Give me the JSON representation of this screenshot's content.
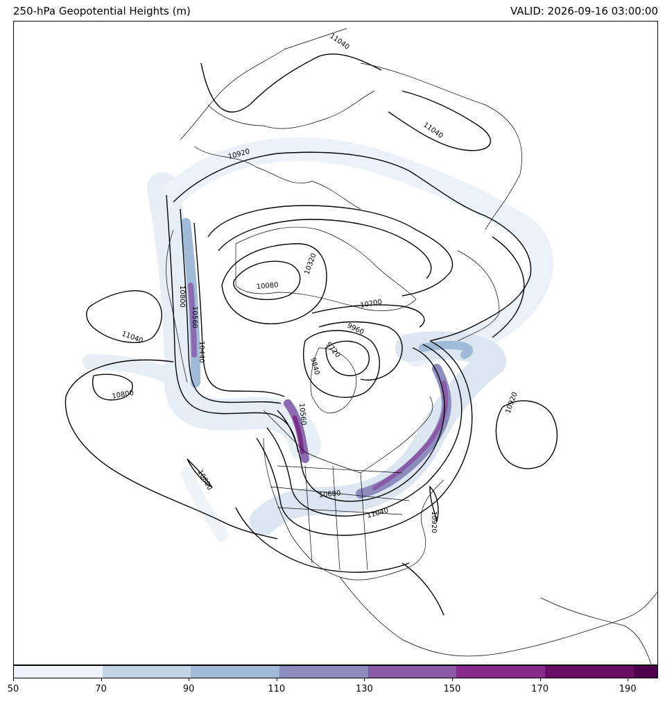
{
  "header": {
    "title": "250-hPa Geopotential Heights (m)",
    "valid": "VALID: 2026-09-16 03:00:00"
  },
  "contour_labels": [
    {
      "text": "11040",
      "rotate": 35
    },
    {
      "text": "11040",
      "rotate": 35
    },
    {
      "text": "10920",
      "rotate": -15
    },
    {
      "text": "11040",
      "rotate": 20
    },
    {
      "text": "10800",
      "rotate": -10
    },
    {
      "text": "10800",
      "rotate": 90
    },
    {
      "text": "10560",
      "rotate": 90
    },
    {
      "text": "10440",
      "rotate": 90
    },
    {
      "text": "10080",
      "rotate": -5
    },
    {
      "text": "10320",
      "rotate": -70
    },
    {
      "text": "10200",
      "rotate": -10
    },
    {
      "text": "9960",
      "rotate": 25
    },
    {
      "text": "9720",
      "rotate": 50
    },
    {
      "text": "9840",
      "rotate": 75
    },
    {
      "text": "10560",
      "rotate": 85
    },
    {
      "text": "10800",
      "rotate": 60
    },
    {
      "text": "10920",
      "rotate": -70
    },
    {
      "text": "10680",
      "rotate": -5
    },
    {
      "text": "11040",
      "rotate": -15
    },
    {
      "text": "10920",
      "rotate": 90
    }
  ],
  "colorbar": {
    "colors": [
      "#eef3f8",
      "#c3d4e4",
      "#9fbbd7",
      "#8c8cbf",
      "#8b5aa6",
      "#862b8e",
      "#6d0c63",
      "#4d004b"
    ],
    "ticks": [
      "50",
      "70",
      "90",
      "110",
      "130",
      "150",
      "170",
      "190"
    ]
  }
}
